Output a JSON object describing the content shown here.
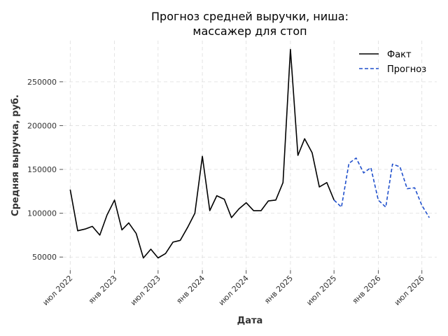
{
  "chart_data": {
    "type": "line",
    "title_lines": [
      "Прогноз средней выручки, ниша:",
      "массажер для стоп"
    ],
    "xlabel": "Дата",
    "ylabel": "Средняя выручка, руб.",
    "x_ticks": [
      {
        "date": "2022-07-01",
        "label": "июл 2022"
      },
      {
        "date": "2023-01-01",
        "label": "янв 2023"
      },
      {
        "date": "2023-07-01",
        "label": "июл 2023"
      },
      {
        "date": "2024-01-01",
        "label": "янв 2024"
      },
      {
        "date": "2024-07-01",
        "label": "июл 2024"
      },
      {
        "date": "2025-01-01",
        "label": "янв 2025"
      },
      {
        "date": "2025-07-01",
        "label": "июл 2025"
      },
      {
        "date": "2026-01-01",
        "label": "янв 2026"
      },
      {
        "date": "2026-07-01",
        "label": "июл 2026"
      }
    ],
    "y_ticks": [
      {
        "value": 50000,
        "label": "50000"
      },
      {
        "value": 100000,
        "label": "100000"
      },
      {
        "value": 150000,
        "label": "150000"
      },
      {
        "value": 200000,
        "label": "200000"
      },
      {
        "value": 250000,
        "label": "250000"
      }
    ],
    "xlim": [
      "2022-06-01",
      "2026-09-01"
    ],
    "ylim": [
      35000,
      297000
    ],
    "grid": true,
    "legend_position": "top-right",
    "series": [
      {
        "name": "Факт",
        "color": "#000000",
        "dash": "solid",
        "x": [
          "2022-07-01",
          "2022-08-01",
          "2022-09-01",
          "2022-10-01",
          "2022-11-01",
          "2022-12-01",
          "2023-01-01",
          "2023-02-01",
          "2023-03-01",
          "2023-04-01",
          "2023-05-01",
          "2023-06-01",
          "2023-07-01",
          "2023-08-01",
          "2023-09-01",
          "2023-10-01",
          "2023-11-01",
          "2023-12-01",
          "2024-01-01",
          "2024-02-01",
          "2024-03-01",
          "2024-04-01",
          "2024-05-01",
          "2024-06-01",
          "2024-07-01",
          "2024-08-01",
          "2024-09-01",
          "2024-10-01",
          "2024-11-01",
          "2024-12-01",
          "2025-01-01",
          "2025-02-01",
          "2025-03-01",
          "2025-04-01",
          "2025-05-01",
          "2025-06-01",
          "2025-07-01"
        ],
        "y": [
          127000,
          80000,
          82000,
          85000,
          75000,
          98000,
          115000,
          81000,
          89000,
          77000,
          49000,
          59000,
          49000,
          54000,
          67000,
          69000,
          84000,
          100000,
          165000,
          103000,
          120000,
          116000,
          95000,
          105000,
          112000,
          103000,
          103000,
          114000,
          115000,
          135000,
          287000,
          166000,
          185000,
          169000,
          130000,
          135000,
          115000
        ]
      },
      {
        "name": "Прогноз",
        "color": "#1f4fcc",
        "dash": "dashed",
        "x": [
          "2025-07-01",
          "2025-08-01",
          "2025-09-01",
          "2025-10-01",
          "2025-11-01",
          "2025-12-01",
          "2026-01-01",
          "2026-02-01",
          "2026-03-01",
          "2026-04-01",
          "2026-05-01",
          "2026-06-01",
          "2026-07-01",
          "2026-08-01"
        ],
        "y": [
          115000,
          107000,
          157000,
          163000,
          146000,
          152000,
          115000,
          107000,
          156000,
          153000,
          128000,
          129000,
          109000,
          95000
        ]
      }
    ]
  }
}
